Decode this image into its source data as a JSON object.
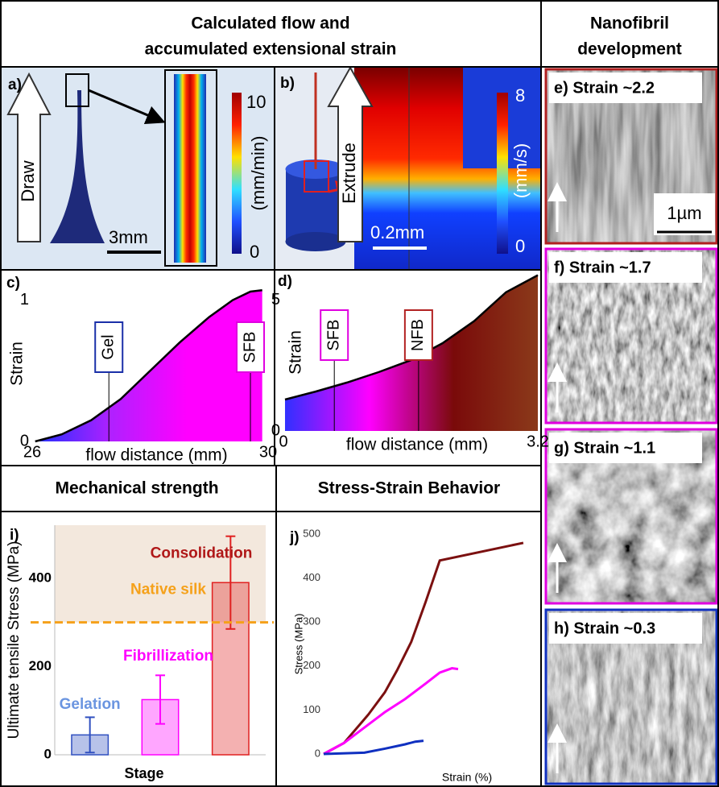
{
  "headers": {
    "flow": [
      "Calculated flow and",
      "accumulated extensional strain"
    ],
    "nanofibril": [
      "Nanofibril",
      "development"
    ],
    "mechanical": "Mechanical strength",
    "stress_strain": "Stress-Strain Behavior"
  },
  "panels": {
    "a": {
      "label": "a)",
      "arrow": "Draw",
      "scale": "3mm",
      "colorbar": {
        "max": "10",
        "min": "0",
        "unit": "(mm/min)"
      }
    },
    "b": {
      "label": "b)",
      "arrow": "Extrude",
      "scale": "0.2mm",
      "colorbar": {
        "max": "8",
        "min": "0",
        "unit": "(mm/s)"
      }
    },
    "e": {
      "label": "e) Strain ~2.2",
      "scale": "1µm"
    },
    "f": {
      "label": "f) Strain ~1.7"
    },
    "g": {
      "label": "g) Strain ~1.1"
    },
    "h": {
      "label": "h) Strain ~0.3"
    }
  },
  "chart_data": [
    {
      "type": "area",
      "label": "c)",
      "xlabel": "flow distance (mm)",
      "ylabel": "Strain",
      "x": [
        26.05,
        26.5,
        27,
        27.5,
        28,
        28.5,
        29,
        29.4,
        29.7,
        29.9
      ],
      "values": [
        0,
        0.05,
        0.15,
        0.3,
        0.5,
        0.7,
        0.88,
        1.0,
        1.06,
        1.07
      ],
      "xlim": [
        26,
        30
      ],
      "xticks": [
        26,
        30
      ],
      "ylim": [
        0,
        1.1
      ],
      "yticks": [
        0,
        1
      ],
      "colors": [
        "#2030ff",
        "#b020ff",
        "#ff00ff",
        "#ff00ff"
      ],
      "annotations": [
        {
          "text": "Gel",
          "x": 27.3,
          "color": "#1a2fa8"
        },
        {
          "text": "SFB",
          "x": 29.7,
          "color": "#e000e0"
        }
      ]
    },
    {
      "type": "area",
      "label": "d)",
      "xlabel": "flow distance (mm)",
      "ylabel": "Strain",
      "x": [
        0.02,
        0.4,
        0.8,
        1.2,
        1.6,
        2.0,
        2.4,
        2.8,
        3.2
      ],
      "values": [
        1.2,
        1.5,
        1.85,
        2.25,
        2.7,
        3.35,
        4.2,
        5.3,
        5.95
      ],
      "xlim": [
        0,
        3.2
      ],
      "xticks": [
        0,
        3.2
      ],
      "ylim": [
        0,
        6
      ],
      "yticks": [
        0,
        5
      ],
      "colors": [
        "#3030ff",
        "#ff00ff",
        "#7a0a0a",
        "#8b3a1a"
      ],
      "annotations": [
        {
          "text": "SFB",
          "x": 0.64,
          "color": "#e000e0"
        },
        {
          "text": "NFB",
          "x": 1.7,
          "color": "#b22222"
        }
      ]
    },
    {
      "type": "bar",
      "label": "i)",
      "xlabel": "Stage",
      "ylabel": "Ultimate tensile Stress (MPa)",
      "categories": [
        null,
        null,
        null
      ],
      "values": [
        45,
        125,
        390
      ],
      "errors": [
        40,
        55,
        105
      ],
      "colors": [
        "#3050c0",
        "#ff00ff",
        "#e02020"
      ],
      "ylim": [
        0,
        520
      ],
      "yticks": [
        0,
        200,
        400
      ],
      "reference": {
        "value": 300,
        "text": "Native silk",
        "color": "#f5a11a"
      },
      "annotations": [
        {
          "text": "Gelation",
          "y": 113,
          "color": "#6b95e0"
        },
        {
          "text": "Fibrillization",
          "y": 223,
          "color": "#ff00ff"
        },
        {
          "text": "Consolidation",
          "y": 455,
          "color": "#b01818"
        }
      ]
    },
    {
      "type": "line",
      "label": "j)",
      "xlabel": "Strain (%)",
      "ylabel": "Stress (MPa)",
      "xlim": [
        0,
        10
      ],
      "ylim": [
        0,
        500
      ],
      "yticks": [
        0,
        100,
        200,
        300,
        400,
        500
      ],
      "series": [
        {
          "color": "#7b1010",
          "x": [
            0,
            1,
            2.2,
            3,
            3.6,
            4.3,
            5,
            5.7,
            9.8
          ],
          "values": [
            0,
            25,
            90,
            140,
            190,
            255,
            345,
            440,
            480
          ]
        },
        {
          "color": "#ff00ff",
          "x": [
            0,
            1,
            2,
            3,
            4,
            5,
            5.7,
            6.3,
            6.6
          ],
          "values": [
            0,
            25,
            60,
            95,
            125,
            160,
            185,
            195,
            193
          ]
        },
        {
          "color": "#1030c0",
          "x": [
            0,
            2,
            3,
            4,
            4.5,
            4.9
          ],
          "values": [
            0,
            3,
            12,
            22,
            28,
            30
          ]
        }
      ]
    }
  ]
}
